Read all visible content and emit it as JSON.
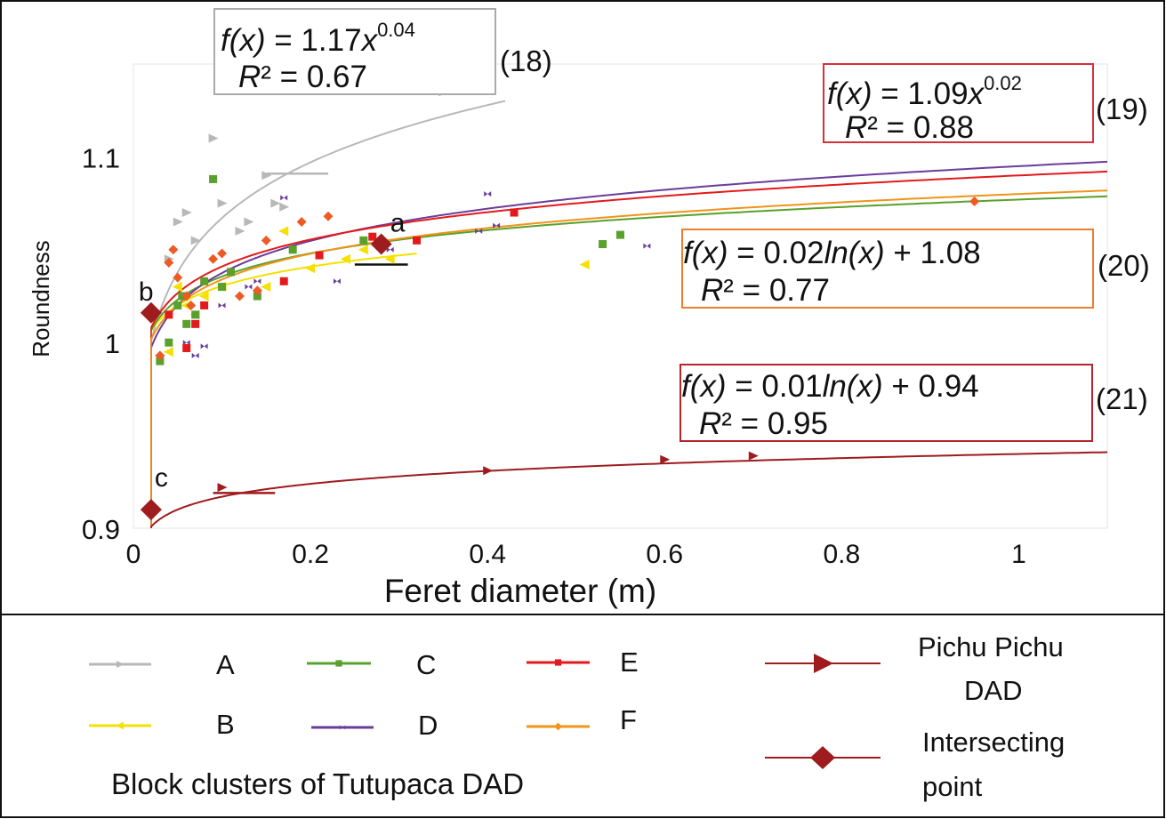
{
  "chart_data": {
    "type": "scatter",
    "xlabel": "Feret diameter (m)",
    "ylabel": "Roundness",
    "xlim": [
      0,
      1.1
    ],
    "ylim": [
      0.9,
      1.15
    ],
    "x_ticks": [
      {
        "v": 0,
        "label": "0"
      },
      {
        "v": 0.2,
        "label": "0.2"
      },
      {
        "v": 0.4,
        "label": "0.4"
      },
      {
        "v": 0.6,
        "label": "0.6"
      },
      {
        "v": 0.8,
        "label": "0.8"
      },
      {
        "v": 1,
        "label": "1"
      }
    ],
    "y_ticks": [
      {
        "v": 0.9,
        "label": "0.9"
      },
      {
        "v": 1.0,
        "label": "1"
      },
      {
        "v": 1.1,
        "label": "1.1"
      }
    ],
    "grid": false,
    "legend_title": "Block clusters of Tutupaca DAD",
    "series": [
      {
        "name": "A",
        "color": "#b8b8b8",
        "marker": "tri-right",
        "points": [
          [
            0.04,
            1.045
          ],
          [
            0.05,
            1.065
          ],
          [
            0.06,
            1.07
          ],
          [
            0.07,
            1.055
          ],
          [
            0.09,
            1.11
          ],
          [
            0.1,
            1.075
          ],
          [
            0.12,
            1.06
          ],
          [
            0.13,
            1.065
          ],
          [
            0.15,
            1.09
          ],
          [
            0.16,
            1.075
          ],
          [
            0.17,
            1.073
          ],
          [
            0.35,
            1.135
          ]
        ],
        "fit": {
          "kind": "power",
          "a": 1.17,
          "b": 0.04,
          "x_from": 0.02,
          "x_to": 0.42
        }
      },
      {
        "name": "B",
        "color": "#f5e000",
        "marker": "tri-left",
        "points": [
          [
            0.04,
            0.995
          ],
          [
            0.05,
            1.03
          ],
          [
            0.06,
            1.02
          ],
          [
            0.07,
            1.015
          ],
          [
            0.08,
            1.025
          ],
          [
            0.1,
            1.03
          ],
          [
            0.15,
            1.03
          ],
          [
            0.17,
            1.06
          ],
          [
            0.2,
            1.04
          ],
          [
            0.24,
            1.045
          ],
          [
            0.26,
            1.05
          ],
          [
            0.29,
            1.045
          ],
          [
            0.51,
            1.042
          ]
        ],
        "fit": {
          "kind": "log",
          "a": 0.015,
          "c": 1.065,
          "x_from": 0.02,
          "x_to": 0.32
        }
      },
      {
        "name": "C",
        "color": "#5aa02c",
        "marker": "square",
        "points": [
          [
            0.03,
            0.99
          ],
          [
            0.04,
            1.0
          ],
          [
            0.05,
            1.02
          ],
          [
            0.055,
            1.025
          ],
          [
            0.06,
            1.01
          ],
          [
            0.07,
            1.015
          ],
          [
            0.08,
            1.033
          ],
          [
            0.09,
            1.088
          ],
          [
            0.1,
            1.03
          ],
          [
            0.11,
            1.038
          ],
          [
            0.14,
            1.025
          ],
          [
            0.18,
            1.05
          ],
          [
            0.26,
            1.055
          ],
          [
            0.53,
            1.053
          ],
          [
            0.55,
            1.058
          ]
        ],
        "fit": {
          "kind": "log",
          "a": 0.018,
          "c": 1.077,
          "x_from": 0.02,
          "x_to": 1.1
        }
      },
      {
        "name": "D",
        "color": "#6a3d9a",
        "marker": "bowtie",
        "points": [
          [
            0.06,
            1.0
          ],
          [
            0.07,
            0.993
          ],
          [
            0.08,
            0.998
          ],
          [
            0.1,
            1.02
          ],
          [
            0.13,
            1.03
          ],
          [
            0.14,
            1.033
          ],
          [
            0.17,
            1.078
          ],
          [
            0.23,
            1.033
          ],
          [
            0.29,
            1.05
          ],
          [
            0.39,
            1.06
          ],
          [
            0.4,
            1.08
          ],
          [
            0.41,
            1.063
          ],
          [
            0.58,
            1.052
          ]
        ],
        "fit": {
          "kind": "log",
          "a": 0.025,
          "c": 1.095,
          "x_from": 0.02,
          "x_to": 1.1
        }
      },
      {
        "name": "E",
        "color": "#e31a1c",
        "marker": "square",
        "points": [
          [
            0.04,
            1.015
          ],
          [
            0.06,
            0.997
          ],
          [
            0.07,
            1.01
          ],
          [
            0.08,
            1.02
          ],
          [
            0.17,
            1.033
          ],
          [
            0.21,
            1.047
          ],
          [
            0.27,
            1.057
          ],
          [
            0.32,
            1.055
          ],
          [
            0.43,
            1.07
          ]
        ],
        "fit": {
          "kind": "power",
          "a": 1.09,
          "b": 0.02,
          "x_from": 0.02,
          "x_to": 1.1
        }
      },
      {
        "name": "F",
        "color": "#ee5a24",
        "marker": "diamond",
        "points": [
          [
            0.03,
            0.993
          ],
          [
            0.04,
            1.043
          ],
          [
            0.045,
            1.05
          ],
          [
            0.05,
            1.035
          ],
          [
            0.06,
            1.025
          ],
          [
            0.065,
            1.02
          ],
          [
            0.09,
            1.045
          ],
          [
            0.1,
            1.048
          ],
          [
            0.12,
            1.025
          ],
          [
            0.14,
            1.028
          ],
          [
            0.15,
            1.055
          ],
          [
            0.19,
            1.065
          ],
          [
            0.22,
            1.068
          ],
          [
            0.95,
            1.076
          ]
        ],
        "fit": {
          "kind": "log",
          "a": 0.02,
          "c": 1.08,
          "x_from": 0.02,
          "x_to": 1.1,
          "line_color": "#f0941a"
        }
      },
      {
        "name": "Pichu Pichu DAD",
        "color": "#9e1b1e",
        "marker": "tri-right",
        "points": [
          [
            0.1,
            0.922
          ],
          [
            0.4,
            0.931
          ],
          [
            0.6,
            0.937
          ],
          [
            0.7,
            0.939
          ]
        ],
        "fit": {
          "kind": "log",
          "a": 0.01,
          "c": 0.94,
          "x_from": 0.02,
          "x_to": 1.1
        }
      }
    ],
    "intersecting_points": {
      "name": "Intersecting point",
      "color": "#9e1b1e",
      "points": [
        {
          "x": 0.28,
          "y": 1.053,
          "label": "a"
        },
        {
          "x": 0.02,
          "y": 1.016,
          "label": "b"
        },
        {
          "x": 0.02,
          "y": 0.91,
          "label": "c"
        }
      ]
    },
    "short_segments": [
      {
        "x1": 0.15,
        "x2": 0.22,
        "y": 1.091,
        "color": "#b8b8b8"
      },
      {
        "x1": 0.25,
        "x2": 0.31,
        "y": 1.042,
        "color": "#111111"
      },
      {
        "x1": 0.09,
        "x2": 0.16,
        "y": 0.919,
        "color": "#9e1b1e"
      }
    ],
    "equations": [
      {
        "id": "18",
        "f": "f(x)",
        "fn_rest": " = 1.17",
        "fn_var": "x",
        "sup": "0.04",
        "r2": "R² = 0.67",
        "number": "(18)",
        "border": "#aaaaaa"
      },
      {
        "id": "19",
        "f": "f(x)",
        "fn_rest": " = 1.09",
        "fn_var": "x",
        "sup": "0.02",
        "r2": "R² = 0.88",
        "number": "(19)",
        "border": "#d6313a"
      },
      {
        "id": "20",
        "f": "f(x)",
        "fn_rest": " = 0.02",
        "fn_var": "ln(x)",
        "sup": "",
        "fn_tail": " + 1.08",
        "r2": "R² = 0.77",
        "number": "(20)",
        "border": "#ee7d2c"
      },
      {
        "id": "21",
        "f": "f(x)",
        "fn_rest": " = 0.01",
        "fn_var": "ln(x)",
        "sup": "",
        "fn_tail": " + 0.94",
        "r2": "R² = 0.95",
        "number": "(21)",
        "border": "#b3242b"
      }
    ],
    "legend": [
      {
        "label": "A",
        "color": "#b8b8b8",
        "marker": "tri-right"
      },
      {
        "label": "B",
        "color": "#f5e000",
        "marker": "tri-left"
      },
      {
        "label": "C",
        "color": "#5aa02c",
        "marker": "square"
      },
      {
        "label": "D",
        "color": "#6a3d9a",
        "marker": "bowtie"
      },
      {
        "label": "E",
        "color": "#e31a1c",
        "marker": "square"
      },
      {
        "label": "F",
        "color": "#f0941a",
        "marker": "diamond"
      },
      {
        "label": "Pichu Pichu",
        "label2": "DAD",
        "color": "#9e1b1e",
        "marker": "tri-right-big"
      },
      {
        "label": "Intersecting",
        "label2": "point",
        "color": "#9e1b1e",
        "marker": "diamond-big"
      }
    ]
  }
}
